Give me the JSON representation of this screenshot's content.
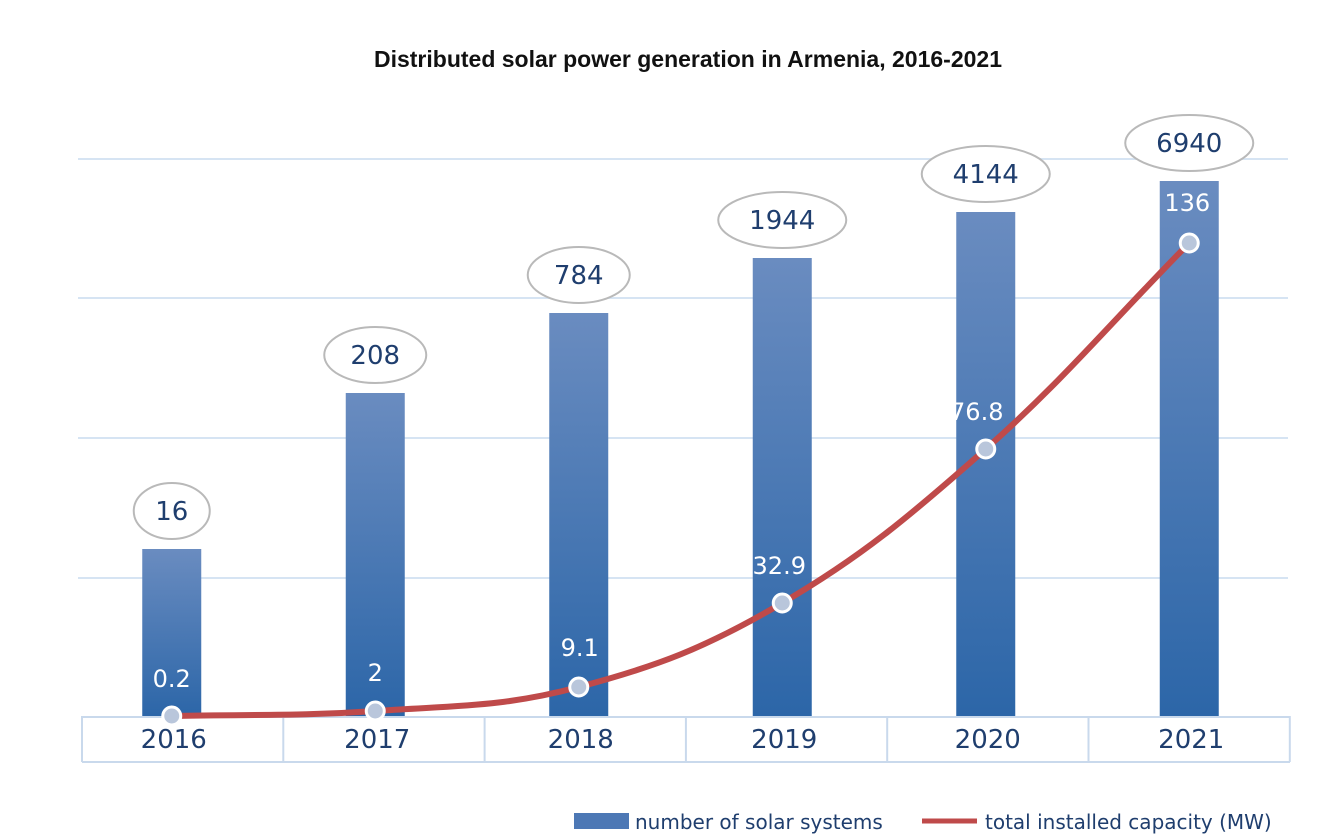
{
  "chart_data": {
    "type": "bar",
    "title": "Distributed solar power generation in Armenia, 2016-2021",
    "categories": [
      "2016",
      "2017",
      "2018",
      "2019",
      "2020",
      "2021"
    ],
    "series": [
      {
        "name": "number of solar systems",
        "type": "bar",
        "values": [
          16,
          208,
          784,
          1944,
          4144,
          6940
        ],
        "color": "#3b6fb0"
      },
      {
        "name": "total installed capacity (MW)",
        "type": "line",
        "values": [
          0.2,
          2,
          9.1,
          32.9,
          76.8,
          136
        ],
        "color": "#bf4a4a"
      }
    ],
    "grid": true,
    "legend_position": "bottom-right"
  }
}
